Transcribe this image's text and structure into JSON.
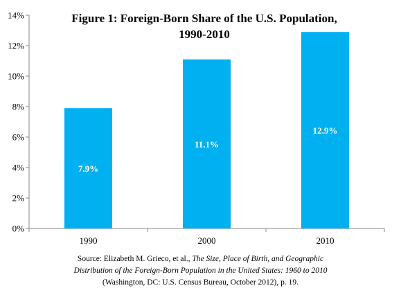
{
  "chart_data": {
    "type": "bar",
    "title_lines": [
      "Figure 1: Foreign-Born Share of the U.S. Population,",
      "1990-2010"
    ],
    "categories": [
      "1990",
      "2000",
      "2010"
    ],
    "values": [
      7.9,
      11.1,
      12.9
    ],
    "data_labels": [
      "7.9%",
      "11.1%",
      "12.9%"
    ],
    "ylim": [
      0,
      14
    ],
    "yticks": [
      0,
      2,
      4,
      6,
      8,
      10,
      12,
      14
    ],
    "ytick_labels": [
      "0%",
      "2%",
      "4%",
      "6%",
      "8%",
      "10%",
      "12%",
      "14%"
    ],
    "xlabel": "",
    "ylabel": "",
    "grid": false,
    "bar_color": "#00b0f0"
  },
  "source": {
    "line1_prefix": "Source: Elizabeth M. Grieco, et al., ",
    "line1_italic": "The Size, Place of Birth, and Geographic",
    "line2_italic": "Distribution of the Foreign-Born Population in the United States: 1960 to 2010",
    "line3": "(Washington, DC: U.S. Census Bureau, October 2012), p. 19."
  }
}
